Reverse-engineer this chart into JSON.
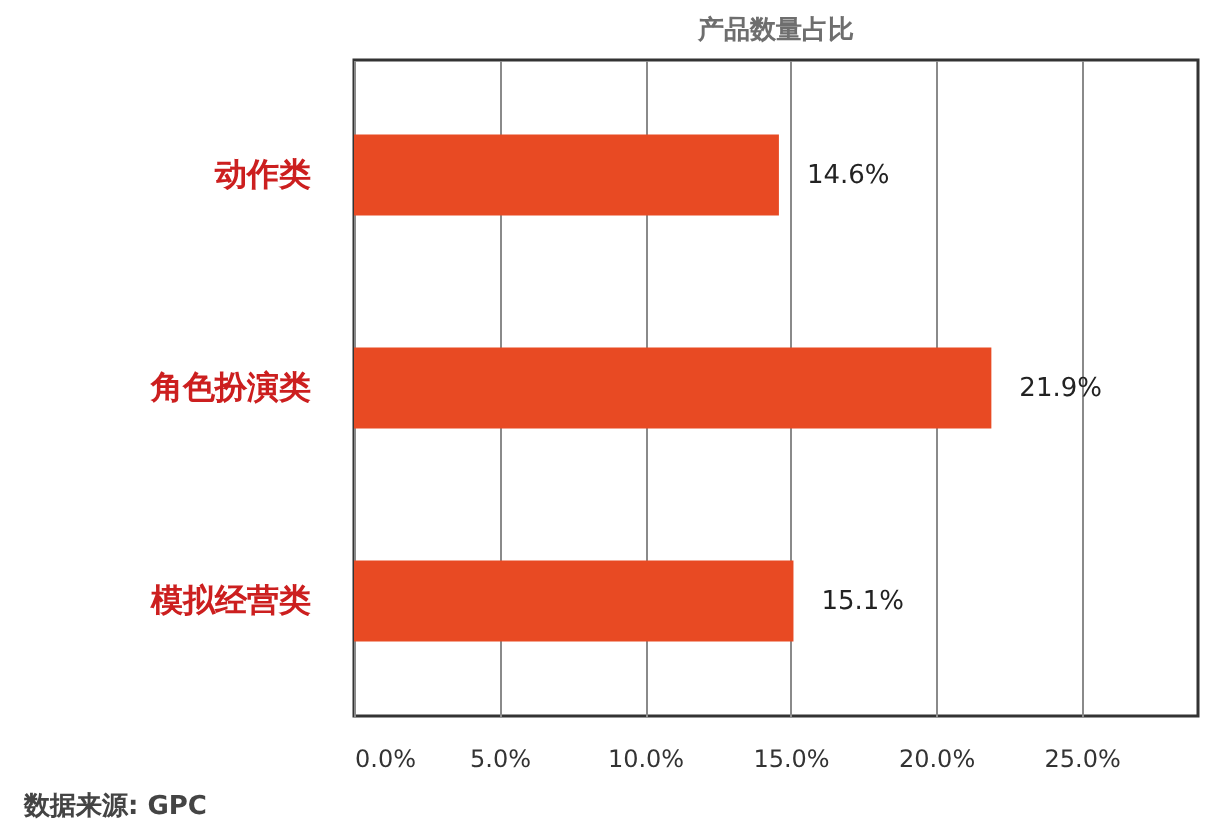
{
  "chart_data": {
    "type": "bar",
    "orientation": "horizontal",
    "title": "产品数量占比",
    "categories": [
      "动作类",
      "角色扮演类",
      "模拟经营类"
    ],
    "values": [
      14.6,
      21.9,
      15.1
    ],
    "value_labels": [
      "14.6%",
      "21.9%",
      "15.1%"
    ],
    "color": "#e84a23",
    "xlim": [
      0,
      29
    ],
    "xticks": [
      {
        "value": 0,
        "label": "0.0%"
      },
      {
        "value": 5,
        "label": "5.0%"
      },
      {
        "value": 10,
        "label": "10.0%"
      },
      {
        "value": 15,
        "label": "15.0%"
      },
      {
        "value": 20,
        "label": "20.0%"
      },
      {
        "value": 25,
        "label": "25.0%"
      }
    ],
    "grid": "x",
    "annotations": [
      "数据来源: GPC"
    ]
  }
}
